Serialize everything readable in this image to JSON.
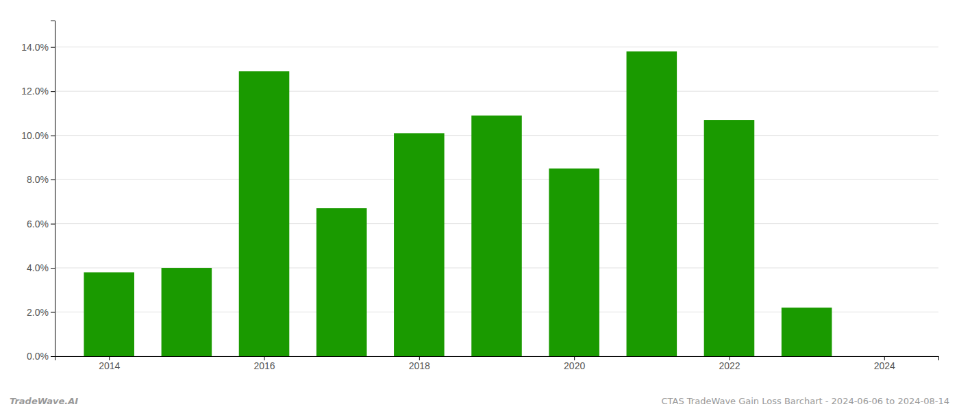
{
  "chart_data": {
    "type": "bar",
    "x": [
      2014,
      2015,
      2016,
      2017,
      2018,
      2019,
      2020,
      2021,
      2022,
      2023,
      2024
    ],
    "values": [
      0.038,
      0.04,
      0.129,
      0.067,
      0.101,
      0.109,
      0.085,
      0.138,
      0.107,
      0.022,
      0.0
    ],
    "color": "#1a9a00",
    "xlim": [
      2013.3,
      2024.7
    ],
    "xticks": [
      2014,
      2016,
      2018,
      2020,
      2022,
      2024
    ],
    "ylim": [
      0.0,
      0.152
    ],
    "yticks": [
      {
        "value": 0.0,
        "label": "0.0%"
      },
      {
        "value": 0.02,
        "label": "2.0%"
      },
      {
        "value": 0.04,
        "label": "4.0%"
      },
      {
        "value": 0.06,
        "label": "6.0%"
      },
      {
        "value": 0.08,
        "label": "8.0%"
      },
      {
        "value": 0.1,
        "label": "10.0%"
      },
      {
        "value": 0.12,
        "label": "12.0%"
      },
      {
        "value": 0.14,
        "label": "14.0%"
      }
    ],
    "grid": true,
    "annotations": [
      "TradeWave.AI",
      "CTAS TradeWave Gain Loss Barchart - 2024-06-06 to 2024-08-14"
    ]
  }
}
